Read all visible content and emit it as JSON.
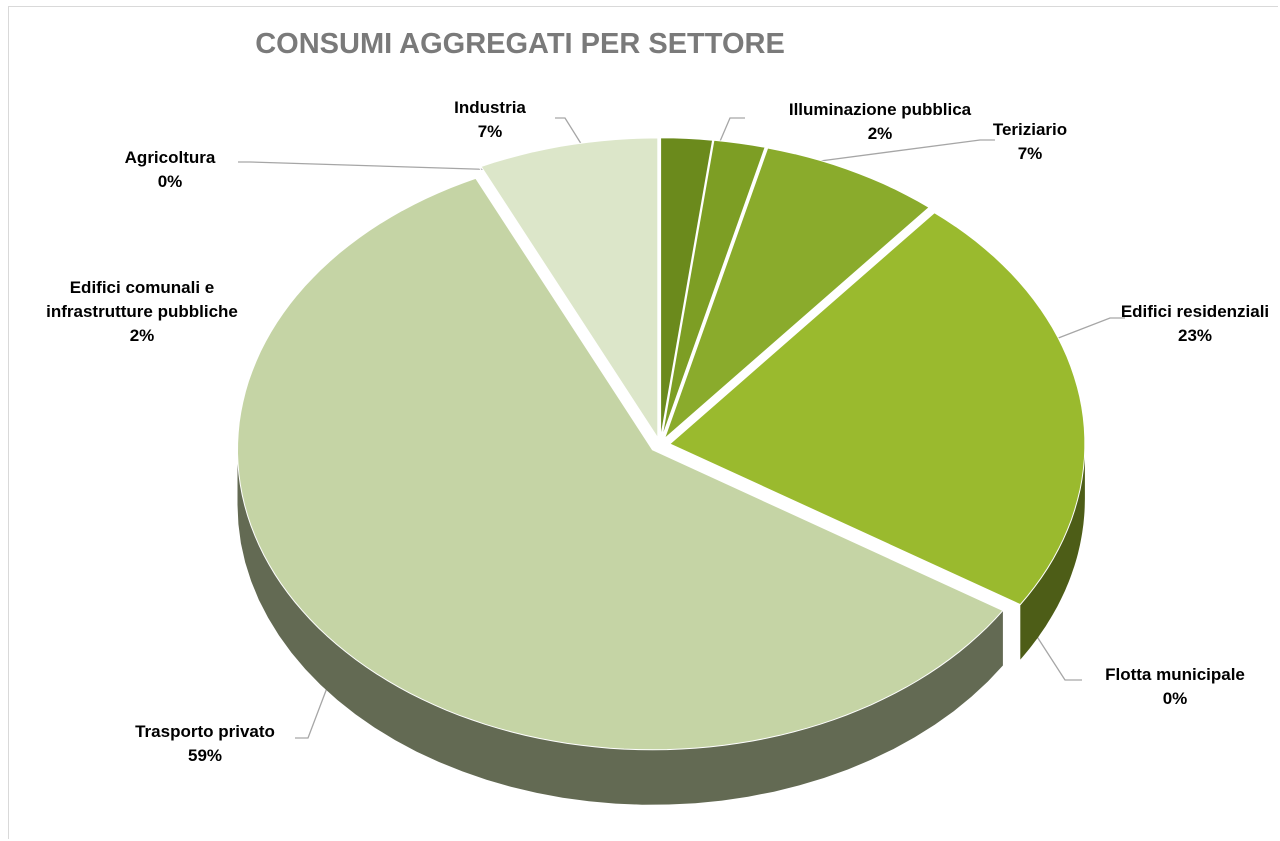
{
  "chart_data": {
    "type": "pie",
    "title": "CONSUMI AGGREGATI PER SETTORE",
    "categories": [
      "Edifici comunali e infrastrutture pubbliche",
      "Illuminazione pubblica",
      "Teriziario",
      "Edifici residenziali",
      "Flotta municipale",
      "Trasporto privato",
      "Agricoltura",
      "Industria"
    ],
    "values": [
      2,
      2,
      7,
      23,
      0,
      59,
      0,
      7
    ],
    "value_labels": [
      "2%",
      "2%",
      "7%",
      "23%",
      "0%",
      "59%",
      "0%",
      "7%"
    ],
    "colors": [
      "#6b8a1c",
      "#7d9e24",
      "#8aab2c",
      "#9aba2e",
      "#3f4a26",
      "#c5d4a5",
      "#55633a",
      "#dce6c9"
    ]
  }
}
